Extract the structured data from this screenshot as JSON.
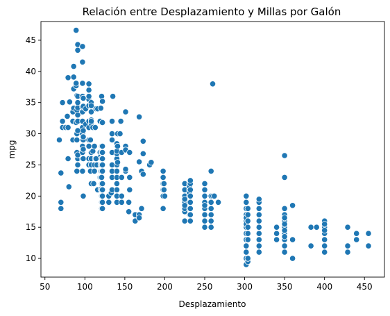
{
  "chart_data": {
    "type": "scatter",
    "title": "Relación entre Desplazamiento y Millas por Galón",
    "xlabel": "Desplazamiento",
    "ylabel": "mpg",
    "xlim": [
      45,
      475
    ],
    "ylim": [
      7,
      48
    ],
    "xticks": [
      50,
      100,
      150,
      200,
      250,
      300,
      350,
      400,
      450
    ],
    "yticks": [
      10,
      15,
      20,
      25,
      30,
      35,
      40,
      45
    ],
    "grid": false,
    "point_color": "#1f77b4",
    "points": [
      [
        68,
        29
      ],
      [
        70,
        18
      ],
      [
        70,
        19
      ],
      [
        70,
        23.7
      ],
      [
        72,
        31
      ],
      [
        72,
        35
      ],
      [
        72,
        32
      ],
      [
        76,
        31
      ],
      [
        78,
        32.8
      ],
      [
        79,
        31
      ],
      [
        79,
        26
      ],
      [
        79,
        39
      ],
      [
        80,
        21.5
      ],
      [
        81,
        35.1
      ],
      [
        85,
        29
      ],
      [
        85,
        32
      ],
      [
        85,
        33.5
      ],
      [
        86,
        34.1
      ],
      [
        86,
        37.2
      ],
      [
        86,
        39.1
      ],
      [
        86,
        40.8
      ],
      [
        89,
        46.6
      ],
      [
        89,
        37.7
      ],
      [
        89,
        31.8
      ],
      [
        89,
        38.1
      ],
      [
        90,
        29
      ],
      [
        90,
        24
      ],
      [
        90,
        27
      ],
      [
        90,
        33.8
      ],
      [
        90,
        36.1
      ],
      [
        90,
        30
      ],
      [
        91,
        30.5
      ],
      [
        91,
        26
      ],
      [
        91,
        25
      ],
      [
        91,
        34.2
      ],
      [
        91,
        36
      ],
      [
        91,
        44.3
      ],
      [
        91,
        43.4
      ],
      [
        91,
        33
      ],
      [
        91,
        32
      ],
      [
        91,
        35
      ],
      [
        91,
        26.6
      ],
      [
        97,
        27
      ],
      [
        97,
        28
      ],
      [
        97,
        24
      ],
      [
        97,
        29
      ],
      [
        97,
        26
      ],
      [
        97,
        30
      ],
      [
        97,
        32
      ],
      [
        97,
        33.5
      ],
      [
        97,
        31
      ],
      [
        97,
        34.3
      ],
      [
        97,
        36
      ],
      [
        97,
        38.1
      ],
      [
        97,
        44
      ],
      [
        97,
        41.5
      ],
      [
        98,
        29
      ],
      [
        98,
        26
      ],
      [
        98,
        34.4
      ],
      [
        98,
        30.5
      ],
      [
        98,
        29.5
      ],
      [
        98,
        35.7
      ],
      [
        98,
        27.5
      ],
      [
        98,
        20
      ],
      [
        101,
        31.5
      ],
      [
        101,
        34
      ],
      [
        105,
        25
      ],
      [
        105,
        28
      ],
      [
        105,
        29
      ],
      [
        105,
        34.5
      ],
      [
        105,
        26
      ],
      [
        105,
        35.5
      ],
      [
        105,
        30.9
      ],
      [
        105,
        37
      ],
      [
        105,
        38
      ],
      [
        105,
        36
      ],
      [
        105,
        32
      ],
      [
        105,
        31
      ],
      [
        107,
        24
      ],
      [
        107,
        29
      ],
      [
        108,
        27
      ],
      [
        108,
        25
      ],
      [
        108,
        22
      ],
      [
        108,
        32.2
      ],
      [
        108,
        31.6
      ],
      [
        108,
        35
      ],
      [
        108,
        34.5
      ],
      [
        108,
        32
      ],
      [
        108,
        26
      ],
      [
        108,
        33.5
      ],
      [
        110,
        27.2
      ],
      [
        110,
        31
      ],
      [
        111,
        22
      ],
      [
        112,
        25
      ],
      [
        112,
        28
      ],
      [
        112,
        24
      ],
      [
        113,
        31
      ],
      [
        113,
        26
      ],
      [
        114,
        26
      ],
      [
        114,
        34
      ],
      [
        115,
        25
      ],
      [
        116,
        21
      ],
      [
        116,
        34
      ],
      [
        119,
        27
      ],
      [
        119,
        23
      ],
      [
        119,
        32
      ],
      [
        120,
        24
      ],
      [
        120,
        21.1
      ],
      [
        120,
        23
      ],
      [
        120,
        25
      ],
      [
        120,
        26.4
      ],
      [
        120,
        34.1
      ],
      [
        121,
        19
      ],
      [
        121,
        22
      ],
      [
        121,
        23
      ],
      [
        121,
        24
      ],
      [
        121,
        25
      ],
      [
        121,
        26
      ],
      [
        121,
        28
      ],
      [
        121,
        21
      ],
      [
        121,
        20
      ],
      [
        121,
        18
      ],
      [
        121,
        27
      ],
      [
        121,
        36
      ],
      [
        122,
        26
      ],
      [
        122,
        20
      ],
      [
        122,
        21
      ],
      [
        122,
        18
      ],
      [
        122,
        19
      ],
      [
        122,
        22
      ],
      [
        122,
        25
      ],
      [
        122,
        27
      ],
      [
        122,
        35.2
      ],
      [
        122,
        31.8
      ],
      [
        122,
        28
      ],
      [
        122,
        24
      ],
      [
        130,
        20
      ],
      [
        130,
        19
      ],
      [
        133,
        20.5
      ],
      [
        134,
        21
      ],
      [
        134,
        23
      ],
      [
        134,
        24
      ],
      [
        134,
        25
      ],
      [
        134,
        30
      ],
      [
        134,
        32
      ],
      [
        134,
        27
      ],
      [
        134,
        29
      ],
      [
        135,
        36
      ],
      [
        140,
        28
      ],
      [
        140,
        26
      ],
      [
        140,
        25
      ],
      [
        140,
        24
      ],
      [
        140,
        23
      ],
      [
        140,
        22
      ],
      [
        140,
        21
      ],
      [
        140,
        20
      ],
      [
        140,
        26.8
      ],
      [
        140,
        27.2
      ],
      [
        140,
        28.4
      ],
      [
        140,
        19
      ],
      [
        141,
        25.4
      ],
      [
        141,
        28
      ],
      [
        141,
        30
      ],
      [
        144,
        30
      ],
      [
        145,
        32
      ],
      [
        146,
        19
      ],
      [
        146,
        20
      ],
      [
        146,
        23
      ],
      [
        146,
        27
      ],
      [
        151,
        24
      ],
      [
        151,
        28
      ],
      [
        151,
        24.3
      ],
      [
        151,
        33.5
      ],
      [
        151,
        27.4
      ],
      [
        155,
        19
      ],
      [
        155,
        17.5
      ],
      [
        156,
        21
      ],
      [
        156,
        23
      ],
      [
        156,
        27
      ],
      [
        163,
        17
      ],
      [
        163,
        16
      ],
      [
        168,
        17
      ],
      [
        168,
        16.5
      ],
      [
        168,
        25.5
      ],
      [
        168,
        32.7
      ],
      [
        171,
        18
      ],
      [
        171,
        24
      ],
      [
        173,
        28.8
      ],
      [
        173,
        26.8
      ],
      [
        173,
        23.5
      ],
      [
        181,
        25
      ],
      [
        183,
        25.4
      ],
      [
        198,
        20
      ],
      [
        198,
        21
      ],
      [
        198,
        22
      ],
      [
        198,
        23
      ],
      [
        198,
        24
      ],
      [
        198,
        18
      ],
      [
        199,
        21
      ],
      [
        199,
        22
      ],
      [
        200,
        20
      ],
      [
        225,
        16
      ],
      [
        225,
        17.5
      ],
      [
        225,
        18
      ],
      [
        225,
        19
      ],
      [
        225,
        20
      ],
      [
        225,
        21
      ],
      [
        225,
        22
      ],
      [
        225,
        18.5
      ],
      [
        225,
        19.5
      ],
      [
        231,
        17
      ],
      [
        231,
        18
      ],
      [
        231,
        19
      ],
      [
        231,
        20
      ],
      [
        231,
        21
      ],
      [
        231,
        22
      ],
      [
        231,
        20.5
      ],
      [
        231,
        21.5
      ],
      [
        232,
        18
      ],
      [
        232,
        19
      ],
      [
        232,
        20
      ],
      [
        232,
        22
      ],
      [
        232,
        16
      ],
      [
        232,
        21
      ],
      [
        232,
        17
      ],
      [
        232,
        22.5
      ],
      [
        250,
        15
      ],
      [
        250,
        16
      ],
      [
        250,
        17
      ],
      [
        250,
        18
      ],
      [
        250,
        19
      ],
      [
        250,
        20
      ],
      [
        250,
        21
      ],
      [
        250,
        22
      ],
      [
        250,
        18.5
      ],
      [
        258,
        15
      ],
      [
        258,
        16
      ],
      [
        258,
        17
      ],
      [
        258,
        18
      ],
      [
        258,
        19
      ],
      [
        258,
        20
      ],
      [
        258,
        24
      ],
      [
        260,
        38
      ],
      [
        260,
        20
      ],
      [
        262,
        20
      ],
      [
        267,
        19
      ],
      [
        302,
        9
      ],
      [
        302,
        10
      ],
      [
        302,
        11
      ],
      [
        302,
        12
      ],
      [
        302,
        13
      ],
      [
        302,
        14
      ],
      [
        302,
        15
      ],
      [
        302,
        16
      ],
      [
        302,
        17
      ],
      [
        302,
        18
      ],
      [
        302,
        19
      ],
      [
        302,
        20
      ],
      [
        302,
        15.5
      ],
      [
        302,
        16.5
      ],
      [
        304,
        9.5
      ],
      [
        304,
        10
      ],
      [
        304,
        13
      ],
      [
        304,
        14
      ],
      [
        304,
        15
      ],
      [
        304,
        16
      ],
      [
        304,
        17
      ],
      [
        304,
        18
      ],
      [
        318,
        11
      ],
      [
        318,
        12
      ],
      [
        318,
        13
      ],
      [
        318,
        14
      ],
      [
        318,
        15
      ],
      [
        318,
        16
      ],
      [
        318,
        17
      ],
      [
        318,
        18
      ],
      [
        318,
        19
      ],
      [
        318,
        19.5
      ],
      [
        340,
        13
      ],
      [
        340,
        14
      ],
      [
        340,
        15
      ],
      [
        350,
        11
      ],
      [
        350,
        12
      ],
      [
        350,
        13
      ],
      [
        350,
        14
      ],
      [
        350,
        15
      ],
      [
        350,
        16
      ],
      [
        350,
        17
      ],
      [
        350,
        18
      ],
      [
        350,
        13.5
      ],
      [
        350,
        15.5
      ],
      [
        350,
        23
      ],
      [
        350,
        26.5
      ],
      [
        350,
        16.5
      ],
      [
        350,
        14.5
      ],
      [
        360,
        10
      ],
      [
        360,
        13
      ],
      [
        360,
        18.5
      ],
      [
        383,
        12
      ],
      [
        383,
        15
      ],
      [
        390,
        15
      ],
      [
        400,
        11
      ],
      [
        400,
        12
      ],
      [
        400,
        13
      ],
      [
        400,
        14
      ],
      [
        400,
        15
      ],
      [
        400,
        16
      ],
      [
        400,
        14.5
      ],
      [
        400,
        15.5
      ],
      [
        429,
        11
      ],
      [
        429,
        12
      ],
      [
        429,
        15
      ],
      [
        440,
        13
      ],
      [
        440,
        14
      ],
      [
        455,
        12
      ],
      [
        455,
        14
      ]
    ]
  }
}
